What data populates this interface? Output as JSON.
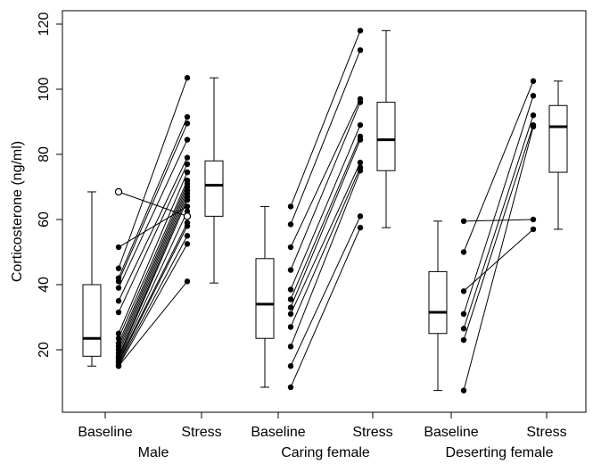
{
  "chart_data": {
    "type": "box-and-paired-dot",
    "title": "",
    "ylabel": "Corticosterone (ng/ml)",
    "ylim": [
      0,
      120
    ],
    "y_ticks": [
      20,
      40,
      60,
      80,
      100,
      120
    ],
    "condition_labels": [
      "Baseline",
      "Stress"
    ],
    "groups": [
      {
        "name": "Male",
        "pairs": [
          {
            "baseline": 51.5,
            "stress": 64,
            "open": false
          },
          {
            "baseline": 45,
            "stress": 103.5,
            "open": false
          },
          {
            "baseline": 42,
            "stress": 91.5,
            "open": false
          },
          {
            "baseline": 41,
            "stress": 89.5,
            "open": false
          },
          {
            "baseline": 39,
            "stress": 84.5,
            "open": false
          },
          {
            "baseline": 35,
            "stress": 79,
            "open": false
          },
          {
            "baseline": 31.5,
            "stress": 77,
            "open": false
          },
          {
            "baseline": 25,
            "stress": 74.5,
            "open": false
          },
          {
            "baseline": 23.5,
            "stress": 72,
            "open": false
          },
          {
            "baseline": 22,
            "stress": 71,
            "open": false
          },
          {
            "baseline": 21,
            "stress": 70,
            "open": false
          },
          {
            "baseline": 20,
            "stress": 69,
            "open": false
          },
          {
            "baseline": 19,
            "stress": 68,
            "open": false
          },
          {
            "baseline": 18,
            "stress": 67,
            "open": false
          },
          {
            "baseline": 17.5,
            "stress": 66,
            "open": false
          },
          {
            "baseline": 17,
            "stress": 62.5,
            "open": false
          },
          {
            "baseline": 16.5,
            "stress": 59,
            "open": false
          },
          {
            "baseline": 16,
            "stress": 58,
            "open": false
          },
          {
            "baseline": 15.5,
            "stress": 55,
            "open": false
          },
          {
            "baseline": 15,
            "stress": 52.5,
            "open": false
          },
          {
            "baseline": 15,
            "stress": 41,
            "open": false
          },
          {
            "baseline": 68.5,
            "stress": 61,
            "open": true
          }
        ],
        "baseline_box": {
          "min": 15,
          "q1": 18,
          "median": 23.5,
          "q3": 40,
          "max": 68.5
        },
        "stress_box": {
          "min": 40.5,
          "q1": 61,
          "median": 70.5,
          "q3": 78,
          "max": 103.5
        }
      },
      {
        "name": "Caring female",
        "pairs": [
          {
            "baseline": 64,
            "stress": 118,
            "open": false
          },
          {
            "baseline": 58.5,
            "stress": 112,
            "open": false
          },
          {
            "baseline": 51.5,
            "stress": 97,
            "open": false
          },
          {
            "baseline": 44.5,
            "stress": 96,
            "open": false
          },
          {
            "baseline": 38.5,
            "stress": 89,
            "open": false
          },
          {
            "baseline": 35.5,
            "stress": 85.5,
            "open": false
          },
          {
            "baseline": 33,
            "stress": 84.5,
            "open": false
          },
          {
            "baseline": 31,
            "stress": 77.5,
            "open": false
          },
          {
            "baseline": 27,
            "stress": 76,
            "open": false
          },
          {
            "baseline": 21,
            "stress": 75,
            "open": false
          },
          {
            "baseline": 15,
            "stress": 61,
            "open": false
          },
          {
            "baseline": 8.5,
            "stress": 57.5,
            "open": false
          }
        ],
        "baseline_box": {
          "min": 8.5,
          "q1": 23.5,
          "median": 34,
          "q3": 48,
          "max": 64
        },
        "stress_box": {
          "min": 57.5,
          "q1": 75,
          "median": 84.5,
          "q3": 96,
          "max": 118
        }
      },
      {
        "name": "Deserting female",
        "pairs": [
          {
            "baseline": 59.5,
            "stress": 60,
            "open": false
          },
          {
            "baseline": 50,
            "stress": 102.5,
            "open": false
          },
          {
            "baseline": 38,
            "stress": 57,
            "open": false
          },
          {
            "baseline": 31,
            "stress": 98,
            "open": false
          },
          {
            "baseline": 26.5,
            "stress": 92,
            "open": false
          },
          {
            "baseline": 23,
            "stress": 89,
            "open": false
          },
          {
            "baseline": 7.5,
            "stress": 88.5,
            "open": false
          }
        ],
        "baseline_box": {
          "min": 7.5,
          "q1": 25,
          "median": 31.5,
          "q3": 44,
          "max": 59.5
        },
        "stress_box": {
          "min": 57,
          "q1": 74.5,
          "median": 88.5,
          "q3": 95,
          "max": 102.5
        }
      }
    ]
  }
}
